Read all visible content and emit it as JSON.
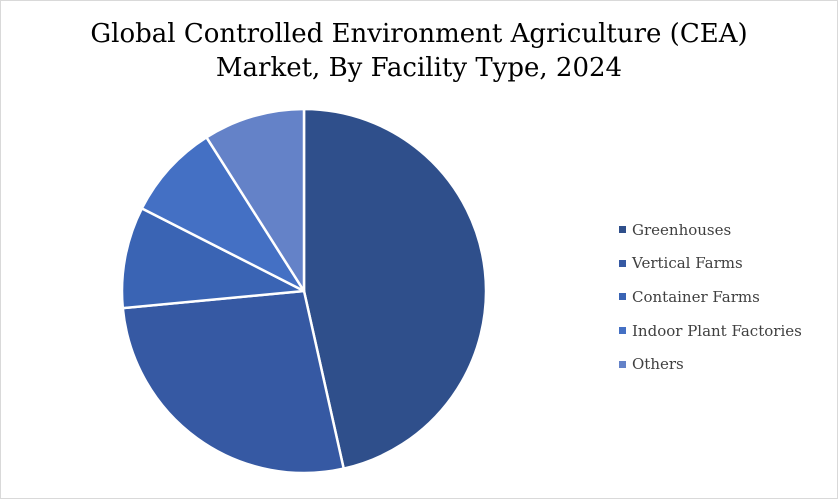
{
  "chart_data": {
    "type": "pie",
    "title_line1": "Global Controlled Environment Agriculture (CEA)",
    "title_line2": "Market, By Facility Type, 2024",
    "categories": [
      "Greenhouses",
      "Vertical Farms",
      "Container Farms",
      "Indoor Plant Factories",
      "Others"
    ],
    "values": [
      46.5,
      27.0,
      9.0,
      8.5,
      9.0
    ],
    "colors": [
      "#2f4f8b",
      "#3659a3",
      "#3a64b4",
      "#4470c4",
      "#6482c8"
    ],
    "legend_position": "right"
  }
}
